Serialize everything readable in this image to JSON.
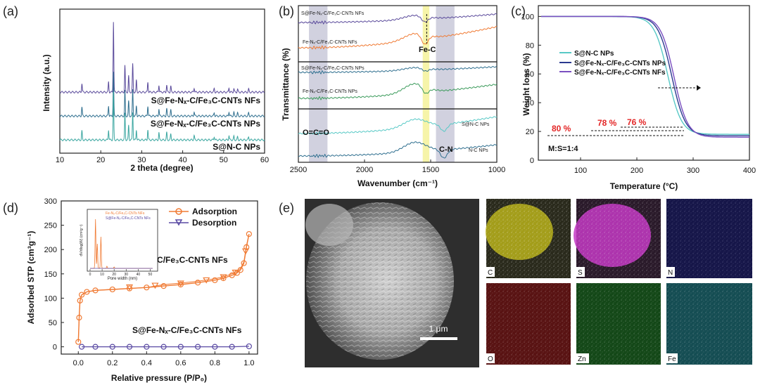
{
  "panel_labels": {
    "a": "(a)",
    "b": "(b)",
    "c": "(c)",
    "d": "(d)",
    "e": "(e)"
  },
  "colors": {
    "s_fe_nf": "#5a4a9b",
    "fe_nf": "#2f6f8f",
    "sn_np": "#3aa6a0",
    "orange": "#f07a33",
    "green": "#3a9a5a",
    "blue_dark": "#2b3a8f",
    "cyan": "#58c9c6",
    "red_text": "#e32626"
  },
  "chart_data": [
    {
      "id": "a",
      "type": "line",
      "xlabel": "2 theta (degree)",
      "ylabel": "Intensity (a.u.)",
      "xlim": [
        10,
        60
      ],
      "xticks": [
        10,
        20,
        30,
        40,
        50,
        60
      ],
      "series": [
        {
          "name": "S@Fe-Nx-C/Fe3C-CNTs NFs",
          "offset": 2,
          "peaks": [
            [
              15.4,
              0.3
            ],
            [
              21.9,
              0.35
            ],
            [
              23.1,
              2.4
            ],
            [
              25.9,
              0.9
            ],
            [
              26.8,
              0.55
            ],
            [
              27.8,
              0.95
            ],
            [
              28.7,
              0.4
            ],
            [
              31.5,
              0.35
            ],
            [
              34.2,
              0.25
            ],
            [
              36.1,
              0.25
            ],
            [
              37.1,
              0.2
            ],
            [
              42.8,
              0.15
            ],
            [
              47.7,
              0.12
            ],
            [
              51.3,
              0.15
            ],
            [
              52.5,
              0.12
            ],
            [
              53.4,
              0.1
            ],
            [
              56.1,
              0.1
            ]
          ]
        },
        {
          "name": "S@Fe-Nx-C/Fe3C-CNTs NPs",
          "offset": 1,
          "peaks": [
            [
              15.4,
              0.3
            ],
            [
              21.9,
              0.35
            ],
            [
              23.1,
              1.5
            ],
            [
              25.9,
              0.85
            ],
            [
              26.8,
              0.5
            ],
            [
              27.8,
              0.9
            ],
            [
              28.7,
              0.35
            ],
            [
              31.5,
              0.35
            ],
            [
              34.2,
              0.25
            ],
            [
              36.1,
              0.25
            ],
            [
              37.1,
              0.2
            ],
            [
              42.8,
              0.15
            ],
            [
              47.7,
              0.12
            ],
            [
              51.3,
              0.15
            ],
            [
              52.5,
              0.12
            ],
            [
              53.4,
              0.1
            ],
            [
              56.1,
              0.1
            ]
          ]
        },
        {
          "name": "S@N-C NPs",
          "offset": 0,
          "peaks": [
            [
              15.4,
              0.3
            ],
            [
              21.9,
              0.35
            ],
            [
              23.1,
              1.6
            ],
            [
              25.9,
              0.9
            ],
            [
              26.8,
              0.5
            ],
            [
              27.8,
              0.95
            ],
            [
              28.7,
              0.35
            ],
            [
              31.5,
              0.35
            ],
            [
              34.2,
              0.25
            ],
            [
              36.1,
              0.25
            ],
            [
              37.1,
              0.2
            ],
            [
              42.8,
              0.15
            ],
            [
              47.7,
              0.12
            ],
            [
              51.3,
              0.15
            ],
            [
              52.5,
              0.12
            ],
            [
              53.4,
              0.1
            ],
            [
              56.1,
              0.1
            ]
          ]
        }
      ]
    },
    {
      "id": "b",
      "type": "line",
      "xlabel": "Wavenumber (cm⁻¹)",
      "ylabel": "Transmittance (%)",
      "xlim": [
        2500,
        1000
      ],
      "xticks": [
        2500,
        2000,
        1500,
        1000
      ],
      "bands": [
        {
          "from": 2420,
          "to": 2280,
          "color": "#c9c9d9",
          "label": "O=C=O"
        },
        {
          "from": 1460,
          "to": 1320,
          "color": "#c9c9d9",
          "label": "C-N"
        },
        {
          "from": 1560,
          "to": 1510,
          "color": "#f4f29a",
          "label": "Fe-C"
        }
      ],
      "series": [
        {
          "name": "S@Fe-Nₓ-C/Fe₃C-CNTs NFs",
          "box": 0
        },
        {
          "name": "Fe-Nₓ-C/Fe₃C-CNTs NFs",
          "box": 0
        },
        {
          "name": "S@Fe-Nₓ-C/Fe₃C-CNTs NPs",
          "box": 1
        },
        {
          "name": "Fe-Nₓ-C/Fe₃C-CNTs NPs",
          "box": 1
        },
        {
          "name": "S@N-C NPs",
          "box": 2
        },
        {
          "name": "N-C NPs",
          "box": 2
        }
      ]
    },
    {
      "id": "c",
      "type": "line",
      "xlabel": "Temperature (°C)",
      "ylabel": "Weight loss (%)",
      "xlim": [
        25,
        400
      ],
      "ylim": [
        0,
        100
      ],
      "xticks": [
        100,
        200,
        300,
        400
      ],
      "yticks": [
        0,
        20,
        40,
        60,
        80,
        100
      ],
      "series": [
        {
          "name": "S@N-C NPs",
          "midpoint": 255,
          "final": 18
        },
        {
          "name": "S@Fe-Nx-C/Fe3C-CNTs NPs",
          "midpoint": 262,
          "final": 17
        },
        {
          "name": "S@Fe-Nx-C/Fe3C-CNTs NFs",
          "midpoint": 266,
          "final": 16
        }
      ],
      "annotations": [
        "80 %",
        "78 %",
        "76 %",
        "M:S=1:4"
      ]
    },
    {
      "id": "d",
      "type": "line",
      "xlabel": "Relative pressure (P/P₀)",
      "ylabel": "Adsorbed STP (cm³g⁻¹)",
      "xlim": [
        -0.1,
        1.05
      ],
      "ylim": [
        -15,
        300
      ],
      "xticks": [
        0.0,
        0.2,
        0.4,
        0.6,
        0.8,
        1.0
      ],
      "yticks": [
        0,
        50,
        100,
        150,
        200,
        250,
        300
      ],
      "legend": [
        "Adsorption",
        "Desorption"
      ],
      "series": [
        {
          "name": "Fe-Nx-C/Fe3C-CNTs NFs",
          "x": [
            0.0,
            0.005,
            0.01,
            0.02,
            0.05,
            0.1,
            0.2,
            0.3,
            0.4,
            0.5,
            0.6,
            0.7,
            0.8,
            0.85,
            0.9,
            0.93,
            0.95,
            0.97,
            0.985,
            1.0
          ],
          "y": [
            10,
            60,
            95,
            107,
            113,
            116,
            118,
            120,
            122,
            125,
            128,
            132,
            137,
            141,
            147,
            152,
            158,
            172,
            205,
            232
          ]
        },
        {
          "name": "S@Fe-Nx-C/Fe3C-CNTs NFs",
          "x": [
            0.02,
            0.1,
            0.2,
            0.3,
            0.4,
            0.5,
            0.6,
            0.7,
            0.8,
            0.9,
            1.0
          ],
          "y": [
            0,
            0,
            0,
            0,
            0,
            0,
            0,
            0,
            0,
            0,
            1
          ]
        }
      ],
      "inset": {
        "xlabel": "Pore width (nm)",
        "ylabel": "dV/dlog(W) (cm³g⁻¹)",
        "xticks": [
          0,
          10,
          20,
          30,
          40,
          50
        ],
        "legend": [
          "Fe-Nₓ-C/Fe₃C-CNTs NFs",
          "S@Fe-Nₓ-C/Fe₃C-CNTs NFs"
        ]
      }
    }
  ],
  "labels": {
    "a_series": [
      "S@Fe-Nₓ-C/Fe₃C-CNTs NFs",
      "S@Fe-Nₓ-C/Fe₃C-CNTs NPs",
      "S@N-C NPs"
    ],
    "b_fec": "Fe-C",
    "b_ocoo": "O=C=O",
    "b_cn": "C-N",
    "c_legend": [
      "S@N-C NPs",
      "S@Fe-Nₓ-C/Fe₃C-CNTs NPs",
      "S@Fe-Nₓ-C/Fe₃C-CNTs NFs"
    ],
    "c_pct": [
      "80 %",
      "78 %",
      "76 %"
    ],
    "c_ratio": "M:S=1:4",
    "d_fe_label": "Fe-Nₓ-C/Fe₃C-CNTs NFs",
    "d_s_label": "S@Fe-Nₓ-C/Fe₃C-CNTs NFs",
    "e_scale": "1 μm",
    "e_maps": [
      "C",
      "S",
      "N",
      "O",
      "Zn",
      "Fe"
    ]
  }
}
